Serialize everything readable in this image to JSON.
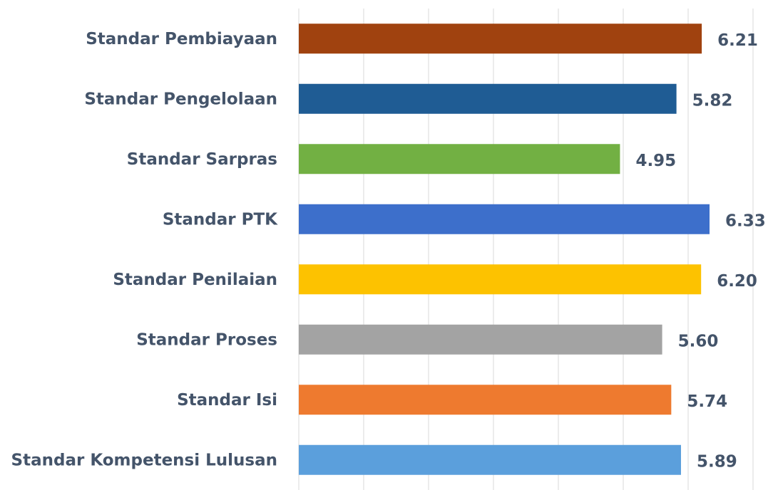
{
  "chart_data": {
    "type": "barh",
    "categories": [
      "Standar Pembiayaan",
      "Standar Pengelolaan",
      "Standar Sarpras",
      "Standar PTK",
      "Standar Penilaian",
      "Standar Proses",
      "Standar Isi",
      "Standar Kompetensi Lulusan"
    ],
    "values": [
      6.21,
      5.82,
      4.95,
      6.33,
      6.2,
      5.6,
      5.74,
      5.89
    ],
    "value_labels": [
      "6.21",
      "5.82",
      "4.95",
      "6.33",
      "6.20",
      "5.60",
      "5.74",
      "5.89"
    ],
    "colors": [
      "#a0420f",
      "#1f5c94",
      "#72b043",
      "#3d6fcb",
      "#fdc200",
      "#a3a3a3",
      "#ee7a2f",
      "#5b9fdc"
    ],
    "xlim": [
      0,
      7
    ],
    "xticks": [
      0,
      1,
      2,
      3,
      4,
      5,
      6,
      7
    ],
    "grid": true
  }
}
